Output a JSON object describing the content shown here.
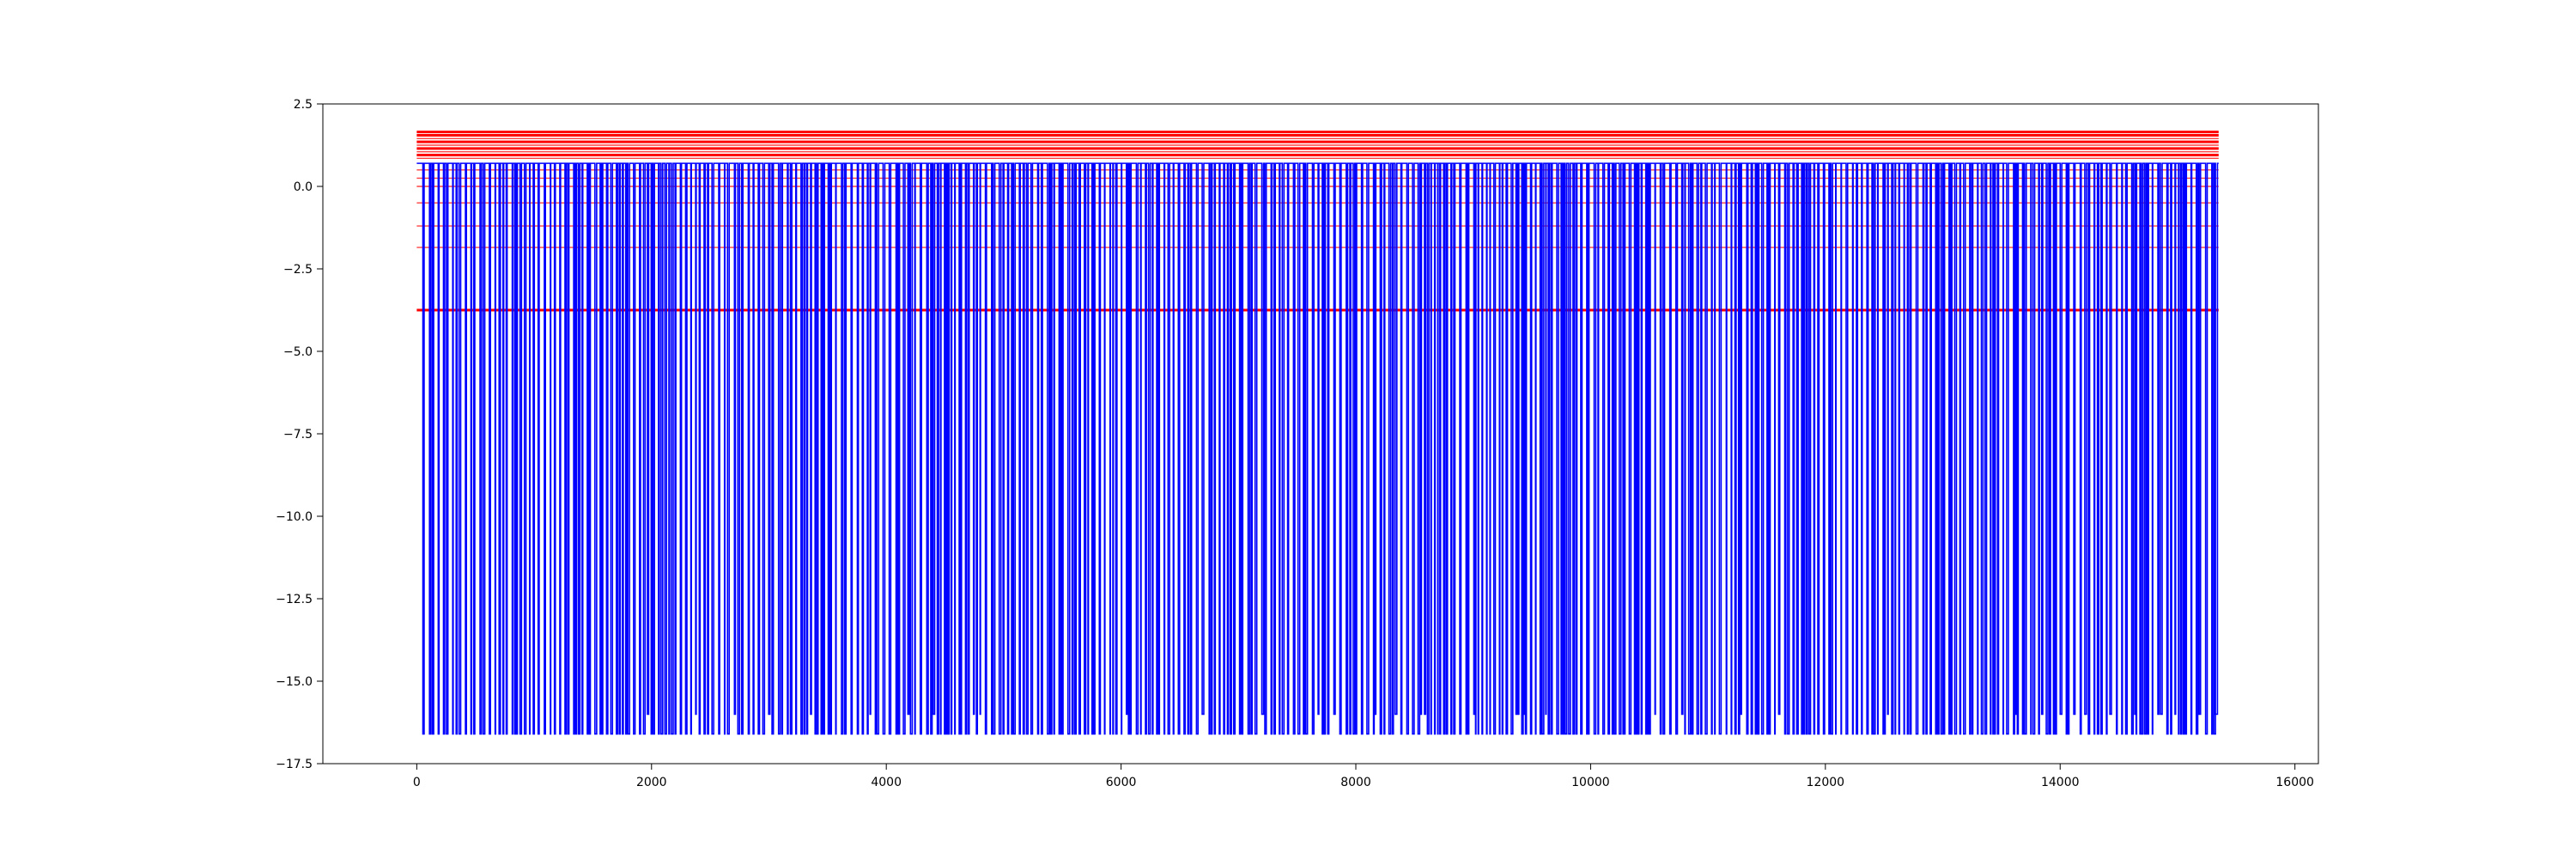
{
  "chart_data": {
    "type": "line",
    "title": "",
    "xlabel": "",
    "ylabel": "",
    "xlim": [
      -800,
      16200
    ],
    "ylim": [
      -17.5,
      2.5
    ],
    "x_ticks": [
      0,
      2000,
      4000,
      6000,
      8000,
      10000,
      12000,
      14000,
      16000
    ],
    "x_tick_labels": [
      "0",
      "2000",
      "4000",
      "6000",
      "8000",
      "10000",
      "12000",
      "14000",
      "16000"
    ],
    "y_ticks": [
      2.5,
      0.0,
      -2.5,
      -5.0,
      -7.5,
      -10.0,
      -12.5,
      -15.0,
      -17.5
    ],
    "y_tick_labels": [
      "2.5",
      "0.0",
      "−2.5",
      "−5.0",
      "−7.5",
      "−10.0",
      "−12.5",
      "−15.0",
      "−17.5"
    ],
    "grid": false,
    "legend": "none",
    "signal": {
      "name": "",
      "color": "#0000ff",
      "x_range": [
        0,
        15350
      ],
      "high_level": 0.7,
      "low_level": -16.6,
      "secondary_low_level": -16.0,
      "dip_count": 620,
      "dip_density": "dense, irregular spikes from 0.7 down to about -16.6 across the full range"
    },
    "threshold_lines": {
      "color": "#ff0000",
      "x_range": [
        0,
        15350
      ],
      "levels": [
        1.65,
        1.55,
        1.45,
        1.35,
        1.25,
        1.15,
        1.05,
        0.95,
        0.85,
        0.5,
        0.25,
        0.0,
        -0.5,
        -1.2,
        -1.85,
        -3.75
      ],
      "emphasized_levels": [
        1.65,
        1.55,
        1.35,
        1.15,
        0.95,
        -3.75
      ]
    },
    "colors": {
      "signal": "#0000ff",
      "threshold": "#ff0000",
      "axes": "#000000",
      "background": "#ffffff"
    }
  }
}
